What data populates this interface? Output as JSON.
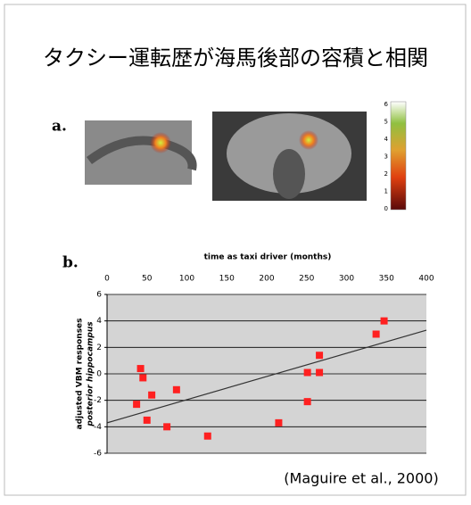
{
  "title": "タクシー運転歴が海馬後部の容積と相関",
  "panel_a_label": "a.",
  "panel_b_label": "b.",
  "colorbar": {
    "ticks": [
      0,
      1,
      2,
      3,
      4,
      5,
      6
    ]
  },
  "citation": "(Maguire et al., 2000)",
  "chart_data": {
    "type": "scatter",
    "x_label": "time as taxi driver (months)",
    "y_label": [
      "adjusted VBM responses",
      "posterior hippocampus"
    ],
    "x": [
      42,
      45,
      37,
      56,
      50,
      87,
      75,
      126,
      215,
      251,
      251,
      266,
      266,
      337,
      347
    ],
    "y": [
      0.4,
      -0.3,
      -2.3,
      -1.6,
      -3.5,
      -1.2,
      -4.0,
      -4.7,
      -3.7,
      -2.1,
      0.1,
      0.1,
      1.4,
      3.0,
      4.0
    ],
    "color": "#ff2020",
    "trendline": {
      "x": [
        0,
        400
      ],
      "y": [
        -3.7,
        3.3
      ],
      "color": "#333333"
    },
    "xlim": [
      0,
      400
    ],
    "xticks": [
      0,
      50,
      100,
      150,
      200,
      250,
      300,
      350,
      400
    ],
    "ylim": [
      -6,
      6
    ],
    "yticks": [
      -6,
      -4,
      -2,
      0,
      2,
      4,
      6
    ],
    "grid": true
  }
}
